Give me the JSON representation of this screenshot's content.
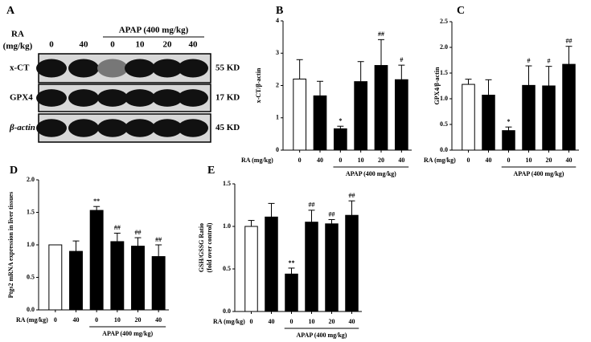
{
  "blot": {
    "panel": "A",
    "ra_label": [
      "RA",
      "(mg/kg)"
    ],
    "group_label": "APAP (400 mg/kg)",
    "lanes": [
      "0",
      "40",
      "0",
      "10",
      "20",
      "40"
    ],
    "bands": [
      {
        "name": "x-CT",
        "size": "55 KD"
      },
      {
        "name": "GPX4",
        "size": "17 KD"
      },
      {
        "name": "β-actin",
        "size": "45 KD"
      }
    ]
  },
  "chart_data": [
    {
      "type": "bar",
      "panel": "B",
      "ylabel": [
        "x-CT/β-actin"
      ],
      "xlabel": "RA (mg/kg)",
      "group_label": "APAP (400 mg/kg)",
      "categories": [
        "0",
        "40",
        "0",
        "10",
        "20",
        "40"
      ],
      "values": [
        2.2,
        1.68,
        0.66,
        2.12,
        2.62,
        2.18
      ],
      "errors": [
        0.6,
        0.45,
        0.08,
        0.62,
        0.8,
        0.45
      ],
      "colors": [
        "#ffffff",
        "#000000",
        "#000000",
        "#000000",
        "#000000",
        "#000000"
      ],
      "annotations": [
        null,
        null,
        "*",
        null,
        "##",
        "#"
      ],
      "ylim": [
        0,
        4
      ],
      "yticks": [
        0,
        1,
        2,
        3,
        4
      ]
    },
    {
      "type": "bar",
      "panel": "C",
      "ylabel": [
        "GPX4/β-actin"
      ],
      "xlabel": "RA (mg/kg)",
      "group_label": "APAP (400 mg/kg)",
      "categories": [
        "0",
        "40",
        "0",
        "10",
        "20",
        "40"
      ],
      "values": [
        1.28,
        1.07,
        0.38,
        1.26,
        1.25,
        1.67
      ],
      "errors": [
        0.1,
        0.3,
        0.07,
        0.38,
        0.38,
        0.35
      ],
      "colors": [
        "#ffffff",
        "#000000",
        "#000000",
        "#000000",
        "#000000",
        "#000000"
      ],
      "annotations": [
        null,
        null,
        "*",
        "#",
        "#",
        "##"
      ],
      "ylim": [
        0,
        2.5
      ],
      "yticks": [
        {
          "value": 0,
          "label": "0.0"
        },
        0.5,
        {
          "value": 1,
          "label": "1.0"
        },
        1.5,
        {
          "value": 2,
          "label": "2.0"
        },
        2.5
      ]
    },
    {
      "type": "bar",
      "panel": "D",
      "ylabel": [
        "Ptgs2 mRNA expression in liver tissues"
      ],
      "xlabel": "RA (mg/kg)",
      "group_label": "APAP (400 mg/kg)",
      "categories": [
        "0",
        "40",
        "0",
        "10",
        "20",
        "40"
      ],
      "values": [
        1.0,
        0.9,
        1.53,
        1.05,
        0.98,
        0.82
      ],
      "errors": [
        0,
        0.16,
        0.06,
        0.13,
        0.13,
        0.18
      ],
      "colors": [
        "#ffffff",
        "#000000",
        "#000000",
        "#000000",
        "#000000",
        "#000000"
      ],
      "annotations": [
        null,
        null,
        "**",
        "##",
        "##",
        "##"
      ],
      "ylim": [
        0,
        2
      ],
      "yticks": [
        {
          "value": 0,
          "label": "0.0"
        },
        0.5,
        {
          "value": 1,
          "label": "1.0"
        },
        1.5,
        {
          "value": 2,
          "label": "2.0"
        }
      ]
    },
    {
      "type": "bar",
      "panel": "E",
      "ylabel": [
        "GSH/GSSG Ratio",
        "(fold over control)"
      ],
      "xlabel": "RA (mg/kg)",
      "group_label": "APAP (400 mg/kg)",
      "categories": [
        "0",
        "40",
        "0",
        "10",
        "20",
        "40"
      ],
      "values": [
        1.0,
        1.11,
        0.44,
        1.05,
        1.03,
        1.13
      ],
      "errors": [
        0.07,
        0.16,
        0.07,
        0.14,
        0.05,
        0.17
      ],
      "colors": [
        "#ffffff",
        "#000000",
        "#000000",
        "#000000",
        "#000000",
        "#000000"
      ],
      "annotations": [
        null,
        null,
        "**",
        "##",
        "##",
        "##"
      ],
      "ylim": [
        0,
        1.5
      ],
      "yticks": [
        {
          "value": 0,
          "label": "0.0"
        },
        0.5,
        {
          "value": 1,
          "label": "1.0"
        },
        1.5
      ]
    }
  ]
}
